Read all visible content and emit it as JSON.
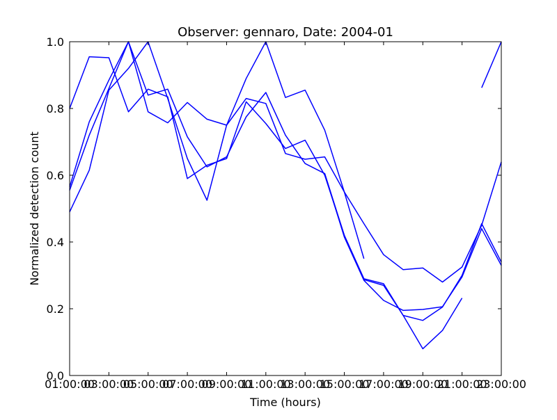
{
  "chart_data": {
    "type": "line",
    "title": "Observer: gennaro, Date: 2004-01",
    "xlabel": "Time (hours)",
    "ylabel": "Normalized detection count",
    "x_tick_labels": [
      "01:00:00",
      "03:00:00",
      "05:00:00",
      "07:00:00",
      "09:00:00",
      "11:00:00",
      "13:00:00",
      "15:00:00",
      "17:00:00",
      "19:00:00",
      "21:00:00",
      "23:00:00"
    ],
    "x_tick_labels_overlapping": [
      "03",
      "05",
      "07",
      "09",
      "11",
      "13",
      "15",
      "17",
      "19",
      "21",
      "23"
    ],
    "y_tick_labels": [
      "0.0",
      "0.2",
      "0.4",
      "0.6",
      "0.8",
      "1.0"
    ],
    "x_range_hours": [
      1,
      23
    ],
    "ylim": [
      0,
      1
    ],
    "grid": false,
    "legend": "none",
    "line_color": "#0000ff",
    "series": [
      {
        "points": [
          [
            1,
            0.8
          ],
          [
            2,
            0.955
          ],
          [
            3,
            0.952
          ],
          [
            4,
            0.79
          ],
          [
            5,
            0.858
          ],
          [
            6,
            0.835
          ],
          [
            7,
            0.59
          ],
          [
            8,
            0.63
          ],
          [
            9,
            0.65
          ],
          [
            10,
            0.82
          ],
          [
            11,
            0.755
          ],
          [
            12,
            0.68
          ],
          [
            13,
            0.705
          ],
          [
            14,
            0.6
          ],
          [
            15,
            0.42
          ],
          [
            16,
            0.29
          ],
          [
            17,
            0.275
          ],
          [
            18,
            0.18
          ],
          [
            19,
            0.08
          ],
          [
            20,
            0.135
          ],
          [
            21,
            0.232
          ]
        ]
      },
      {
        "points": [
          [
            1,
            0.565
          ],
          [
            2,
            0.76
          ],
          [
            3,
            0.885
          ],
          [
            4,
            1.0
          ],
          [
            5,
            0.79
          ],
          [
            6,
            0.757
          ],
          [
            7,
            0.818
          ],
          [
            8,
            0.768
          ],
          [
            9,
            0.75
          ],
          [
            10,
            0.89
          ],
          [
            11,
            1.0
          ],
          [
            12,
            0.833
          ],
          [
            13,
            0.855
          ],
          [
            14,
            0.735
          ],
          [
            15,
            0.55
          ],
          [
            16,
            0.35
          ]
        ]
      },
      {
        "points": [
          [
            22,
            0.862
          ],
          [
            23,
            1.0
          ]
        ]
      },
      {
        "points": [
          [
            1,
            0.49
          ],
          [
            2,
            0.615
          ],
          [
            3,
            0.855
          ],
          [
            4,
            0.92
          ],
          [
            5,
            1.0
          ],
          [
            6,
            0.83
          ],
          [
            7,
            0.65
          ],
          [
            8,
            0.525
          ],
          [
            9,
            0.75
          ],
          [
            10,
            0.83
          ],
          [
            11,
            0.815
          ],
          [
            12,
            0.665
          ],
          [
            13,
            0.648
          ],
          [
            14,
            0.655
          ],
          [
            15,
            0.55
          ],
          [
            16,
            0.455
          ],
          [
            17,
            0.362
          ],
          [
            18,
            0.317
          ],
          [
            19,
            0.322
          ],
          [
            20,
            0.28
          ],
          [
            21,
            0.325
          ],
          [
            22,
            0.45
          ],
          [
            23,
            0.64
          ]
        ]
      },
      {
        "points": [
          [
            1,
            0.555
          ],
          [
            2,
            0.72
          ],
          [
            3,
            0.86
          ],
          [
            4,
            1.0
          ],
          [
            5,
            0.84
          ],
          [
            6,
            0.858
          ],
          [
            7,
            0.715
          ],
          [
            8,
            0.625
          ],
          [
            9,
            0.655
          ],
          [
            10,
            0.775
          ],
          [
            11,
            0.848
          ],
          [
            12,
            0.72
          ],
          [
            13,
            0.635
          ],
          [
            14,
            0.605
          ],
          [
            15,
            0.415
          ],
          [
            16,
            0.285
          ],
          [
            17,
            0.225
          ],
          [
            18,
            0.195
          ],
          [
            19,
            0.198
          ],
          [
            20,
            0.206
          ],
          [
            21,
            0.295
          ],
          [
            22,
            0.44
          ],
          [
            23,
            0.33
          ]
        ]
      },
      {
        "points": [
          [
            14,
            0.605
          ],
          [
            15,
            0.42
          ],
          [
            16,
            0.287
          ],
          [
            17,
            0.27
          ],
          [
            18,
            0.18
          ],
          [
            19,
            0.165
          ],
          [
            20,
            0.205
          ],
          [
            21,
            0.3
          ],
          [
            22,
            0.455
          ],
          [
            23,
            0.34
          ]
        ]
      }
    ]
  }
}
